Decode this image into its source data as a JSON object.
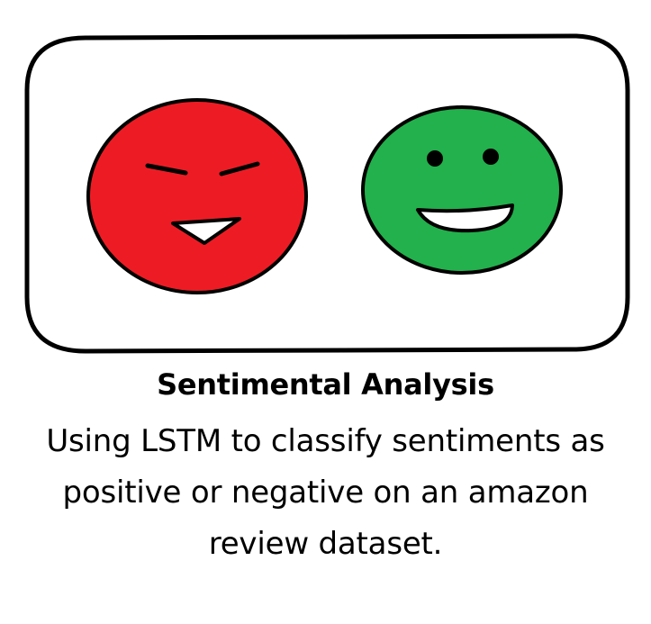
{
  "title": "Sentimental Analysis",
  "description_lines": [
    "Using LSTM to classify sentiments as",
    "positive or negative on an amazon",
    "review dataset."
  ],
  "icons": {
    "negative_face": "angry-face-icon",
    "positive_face": "smiling-face-icon"
  },
  "colors": {
    "negative_face": "#ed1c24",
    "positive_face": "#22b14c",
    "outline": "#000000",
    "background": "#ffffff"
  }
}
